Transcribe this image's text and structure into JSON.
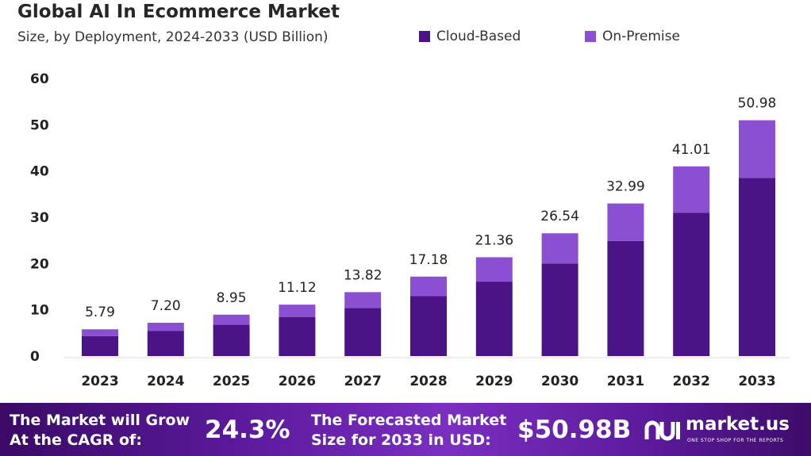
{
  "chart_data": {
    "type": "bar",
    "stacked": true,
    "title": "Global AI In Ecommerce Market",
    "subtitle": "Size, by Deployment, 2024-2033 (USD Billion)",
    "categories": [
      "2023",
      "2024",
      "2025",
      "2026",
      "2027",
      "2028",
      "2029",
      "2030",
      "2031",
      "2032",
      "2033"
    ],
    "series": [
      {
        "name": "Cloud-Based",
        "color": "#4a1486",
        "values": [
          4.3,
          5.4,
          6.8,
          8.4,
          10.4,
          13.0,
          16.1,
          20.0,
          24.9,
          31.0,
          38.5
        ]
      },
      {
        "name": "On-Premise",
        "color": "#8b4fd1",
        "values": [
          1.49,
          1.8,
          2.15,
          2.72,
          3.42,
          4.18,
          5.26,
          6.54,
          8.09,
          10.01,
          12.48
        ]
      }
    ],
    "totals": [
      "5.79",
      "7.20",
      "8.95",
      "11.12",
      "13.82",
      "17.18",
      "21.36",
      "26.54",
      "32.99",
      "41.01",
      "50.98"
    ],
    "yticks": [
      "0",
      "10",
      "20",
      "30",
      "40",
      "50",
      "60"
    ],
    "ylim": [
      0,
      60
    ],
    "legend_position": "top-right"
  },
  "legend": {
    "items": [
      {
        "label": "Cloud-Based",
        "color": "#4a1486"
      },
      {
        "label": "On-Premise",
        "color": "#8b4fd1"
      }
    ]
  },
  "footer": {
    "cagr_line1": "The Market will Grow",
    "cagr_line2": "At the CAGR of:",
    "cagr_value": "24.3%",
    "forecast_line1": "The Forecasted Market",
    "forecast_line2": "Size for 2033 in USD:",
    "forecast_value": "$50.98B",
    "brand": "market.us",
    "tagline": "ONE STOP SHOP FOR THE REPORTS"
  }
}
